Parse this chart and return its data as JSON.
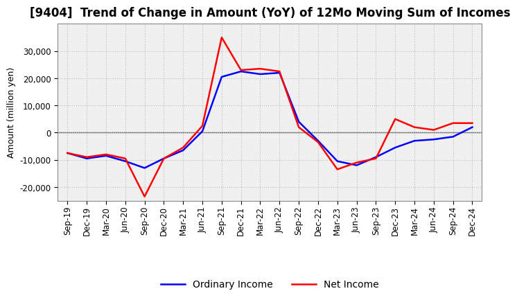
{
  "title": "[9404]  Trend of Change in Amount (YoY) of 12Mo Moving Sum of Incomes",
  "ylabel": "Amount (million yen)",
  "x_labels": [
    "Sep-19",
    "Dec-19",
    "Mar-20",
    "Jun-20",
    "Sep-20",
    "Dec-20",
    "Mar-21",
    "Jun-21",
    "Sep-21",
    "Dec-21",
    "Mar-22",
    "Jun-22",
    "Sep-22",
    "Dec-22",
    "Mar-23",
    "Jun-23",
    "Sep-23",
    "Dec-23",
    "Mar-24",
    "Jun-24",
    "Sep-24",
    "Dec-24"
  ],
  "ordinary_income": [
    -7500,
    -9500,
    -8500,
    -10500,
    -13000,
    -9500,
    -6500,
    500,
    20500,
    22500,
    21500,
    22000,
    4000,
    -3000,
    -10500,
    -12000,
    -9000,
    -5500,
    -3000,
    -2500,
    -1500,
    2000
  ],
  "net_income": [
    -7500,
    -9000,
    -8000,
    -9500,
    -23500,
    -9500,
    -5500,
    2500,
    35000,
    23000,
    23500,
    22500,
    2000,
    -3500,
    -13500,
    -11000,
    -9500,
    5000,
    2000,
    1000,
    3500,
    3500
  ],
  "ordinary_color": "#0000FF",
  "net_color": "#FF0000",
  "ylim": [
    -25000,
    40000
  ],
  "yticks": [
    -20000,
    -10000,
    0,
    10000,
    20000,
    30000
  ],
  "background_color": "#FFFFFF",
  "plot_bg_color": "#F0F0F0",
  "grid_color": "#BBBBBB",
  "legend_ordinary": "Ordinary Income",
  "legend_net": "Net Income",
  "line_width": 1.8,
  "title_fontsize": 12,
  "label_fontsize": 9,
  "tick_fontsize": 8.5
}
